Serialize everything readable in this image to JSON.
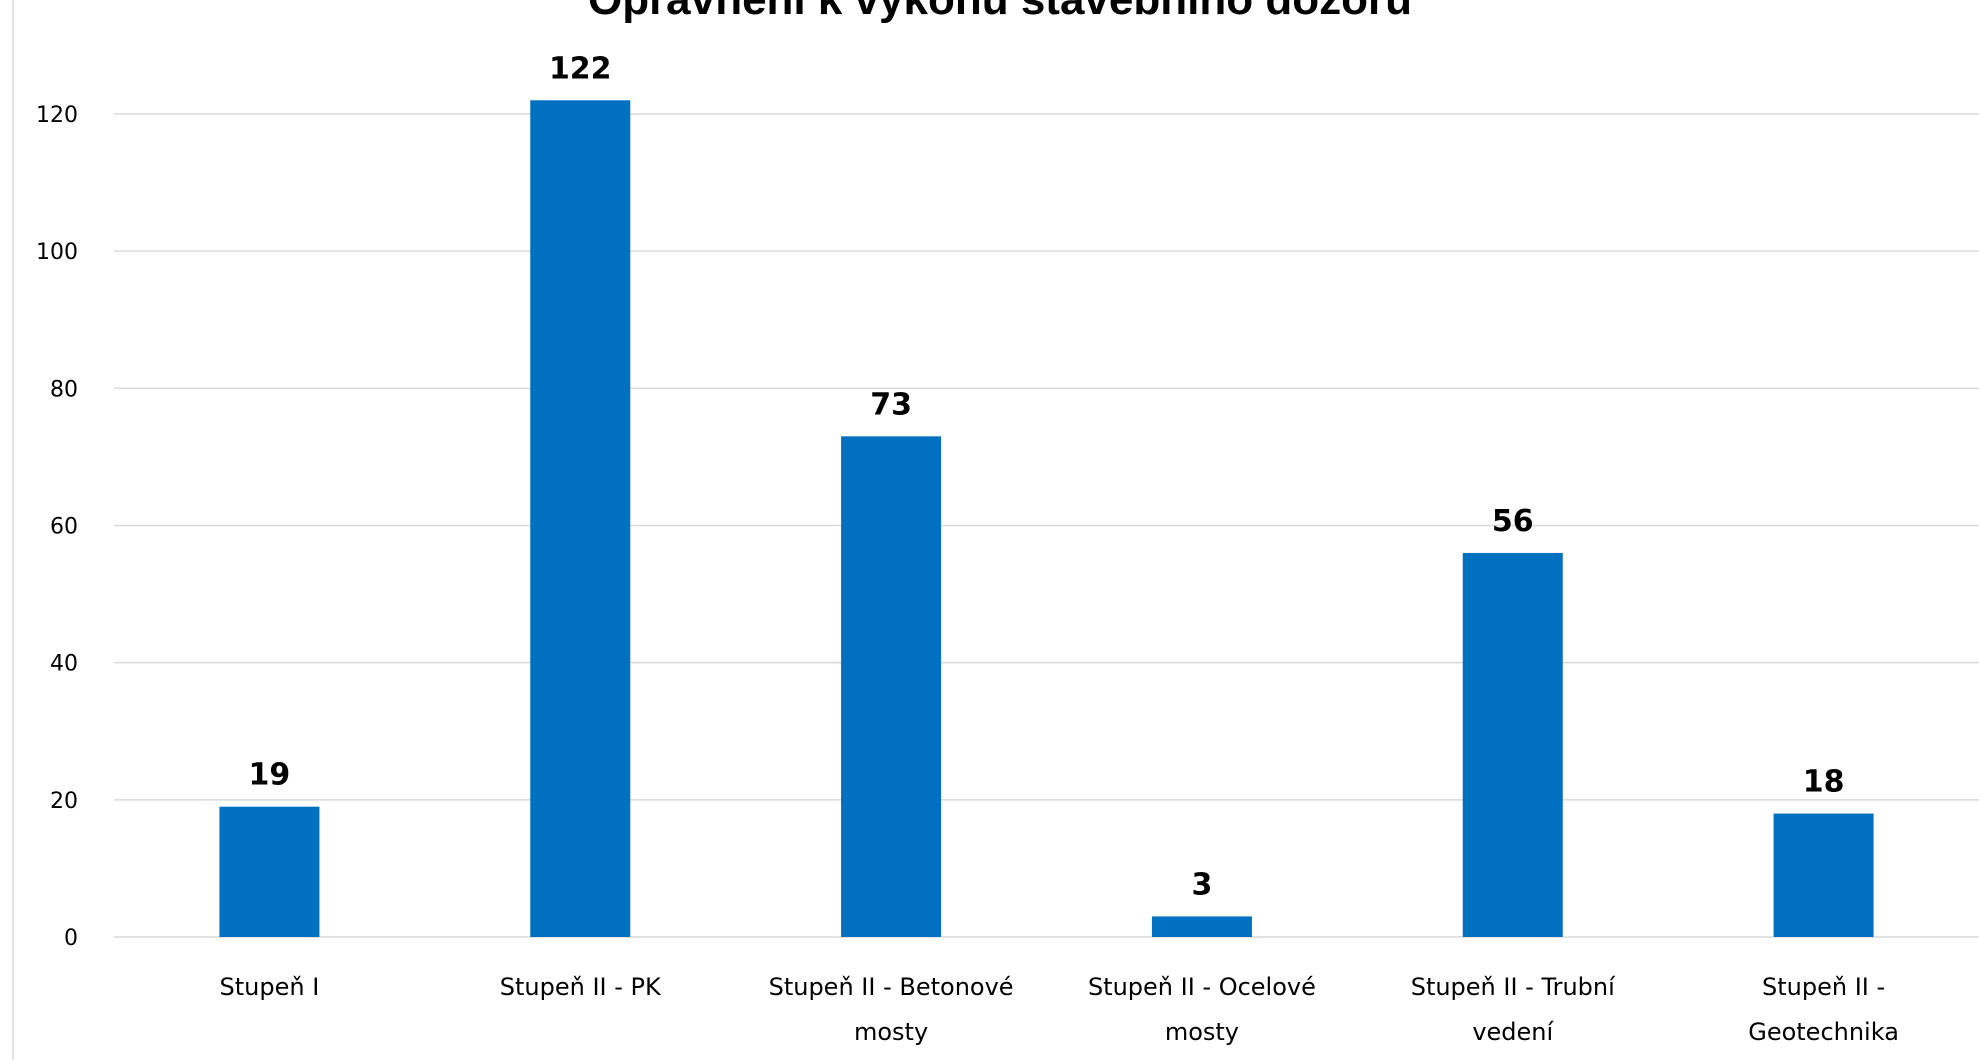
{
  "chart_data": {
    "type": "bar",
    "title": "Oprávnění k výkonu stavebního dozoru",
    "xlabel": "",
    "ylabel": "",
    "categories": [
      [
        "Stupeň I"
      ],
      [
        "Stupeň II - PK"
      ],
      [
        "Stupeň II - Betonové",
        "mosty"
      ],
      [
        "Stupeň II - Ocelové",
        "mosty"
      ],
      [
        "Stupeň II - Trubní",
        "vedení"
      ],
      [
        "Stupeň II -",
        "Geotechnika"
      ]
    ],
    "values": [
      19,
      122,
      73,
      3,
      56,
      18
    ],
    "ylim": [
      0,
      130
    ],
    "yticks": [
      0,
      20,
      40,
      60,
      80,
      100,
      120
    ],
    "grid": true,
    "legend": "none",
    "bar_color": "#0070c0",
    "data_labels": true
  }
}
